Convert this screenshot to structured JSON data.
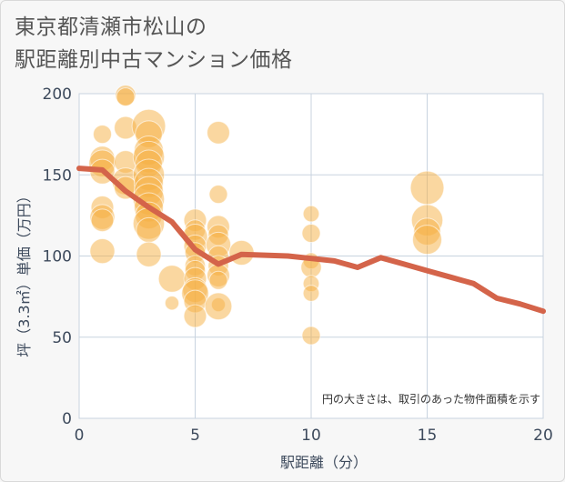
{
  "title": {
    "line1": "東京都清瀬市松山の",
    "line2": "駅距離別中古マンション価格"
  },
  "chart_data": {
    "type": "scatter",
    "title": "東京都清瀬市松山の駅距離別中古マンション価格",
    "xlabel": "駅距離（分）",
    "ylabel": "坪（3.3㎡）単価（万円）",
    "xlim": [
      0,
      20
    ],
    "ylim": [
      0,
      200
    ],
    "xticks": [
      0,
      5,
      10,
      15,
      20
    ],
    "yticks": [
      0,
      50,
      100,
      150,
      200
    ],
    "grid": true,
    "annotation": "円の大きさは、取引のあった物件面積を示す",
    "colors": {
      "bubble": "#f5b041",
      "line": "#d4644a"
    },
    "series": [
      {
        "type": "scatter",
        "points": [
          {
            "x": 1,
            "y": 175,
            "s": 0.5
          },
          {
            "x": 1,
            "y": 160,
            "s": 0.8
          },
          {
            "x": 1,
            "y": 157,
            "s": 0.9
          },
          {
            "x": 1,
            "y": 152,
            "s": 0.8
          },
          {
            "x": 1,
            "y": 130,
            "s": 0.7
          },
          {
            "x": 1,
            "y": 124,
            "s": 0.8
          },
          {
            "x": 1,
            "y": 122,
            "s": 0.7
          },
          {
            "x": 1,
            "y": 103,
            "s": 0.8
          },
          {
            "x": 2,
            "y": 199,
            "s": 0.6
          },
          {
            "x": 2,
            "y": 198,
            "s": 0.5
          },
          {
            "x": 2,
            "y": 179,
            "s": 0.7
          },
          {
            "x": 2,
            "y": 158,
            "s": 0.7
          },
          {
            "x": 2,
            "y": 146,
            "s": 0.9
          },
          {
            "x": 2,
            "y": 142,
            "s": 0.7
          },
          {
            "x": 3,
            "y": 180,
            "s": 1.2
          },
          {
            "x": 3,
            "y": 175,
            "s": 0.9
          },
          {
            "x": 3,
            "y": 165,
            "s": 1.0
          },
          {
            "x": 3,
            "y": 161,
            "s": 1.1
          },
          {
            "x": 3,
            "y": 157,
            "s": 0.9
          },
          {
            "x": 3,
            "y": 150,
            "s": 1.1
          },
          {
            "x": 3,
            "y": 145,
            "s": 1.0
          },
          {
            "x": 3,
            "y": 140,
            "s": 1.0
          },
          {
            "x": 3,
            "y": 135,
            "s": 1.1
          },
          {
            "x": 3,
            "y": 130,
            "s": 1.0
          },
          {
            "x": 3,
            "y": 125,
            "s": 0.9
          },
          {
            "x": 3,
            "y": 120,
            "s": 1.1
          },
          {
            "x": 3,
            "y": 116,
            "s": 0.8
          },
          {
            "x": 3,
            "y": 101,
            "s": 0.8
          },
          {
            "x": 4,
            "y": 86,
            "s": 0.9
          },
          {
            "x": 4,
            "y": 71,
            "s": 0.3
          },
          {
            "x": 5,
            "y": 122,
            "s": 0.7
          },
          {
            "x": 5,
            "y": 116,
            "s": 0.6
          },
          {
            "x": 5,
            "y": 112,
            "s": 0.8
          },
          {
            "x": 5,
            "y": 106,
            "s": 0.7
          },
          {
            "x": 5,
            "y": 102,
            "s": 0.6
          },
          {
            "x": 5,
            "y": 94,
            "s": 0.6
          },
          {
            "x": 5,
            "y": 91,
            "s": 0.6
          },
          {
            "x": 5,
            "y": 86,
            "s": 0.7
          },
          {
            "x": 5,
            "y": 79,
            "s": 0.8
          },
          {
            "x": 5,
            "y": 77,
            "s": 0.9
          },
          {
            "x": 5,
            "y": 72,
            "s": 0.7
          },
          {
            "x": 5,
            "y": 63,
            "s": 0.7
          },
          {
            "x": 6,
            "y": 176,
            "s": 0.7
          },
          {
            "x": 6,
            "y": 138,
            "s": 0.5
          },
          {
            "x": 6,
            "y": 118,
            "s": 0.7
          },
          {
            "x": 6,
            "y": 113,
            "s": 0.6
          },
          {
            "x": 6,
            "y": 107,
            "s": 0.8
          },
          {
            "x": 6,
            "y": 100,
            "s": 0.6
          },
          {
            "x": 6,
            "y": 94,
            "s": 0.6
          },
          {
            "x": 6,
            "y": 88,
            "s": 0.7
          },
          {
            "x": 6,
            "y": 85,
            "s": 0.5
          },
          {
            "x": 6,
            "y": 70,
            "s": 0.3
          },
          {
            "x": 6,
            "y": 69,
            "s": 0.9
          },
          {
            "x": 7,
            "y": 102,
            "s": 0.8
          },
          {
            "x": 10,
            "y": 126,
            "s": 0.4
          },
          {
            "x": 10,
            "y": 114,
            "s": 0.5
          },
          {
            "x": 10,
            "y": 97,
            "s": 0.4
          },
          {
            "x": 10,
            "y": 93,
            "s": 0.6
          },
          {
            "x": 10,
            "y": 83,
            "s": 0.4
          },
          {
            "x": 10,
            "y": 77,
            "s": 0.4
          },
          {
            "x": 10,
            "y": 51,
            "s": 0.5
          },
          {
            "x": 15,
            "y": 142,
            "s": 1.2
          },
          {
            "x": 15,
            "y": 122,
            "s": 1.1
          },
          {
            "x": 15,
            "y": 115,
            "s": 0.9
          },
          {
            "x": 15,
            "y": 110,
            "s": 1.0
          }
        ]
      },
      {
        "type": "line",
        "x": [
          0,
          1,
          2,
          3,
          4,
          5,
          6,
          7,
          8,
          9,
          10,
          11,
          12,
          13,
          14,
          15,
          16,
          17,
          18,
          19,
          20
        ],
        "values": [
          154,
          153,
          140,
          130,
          121,
          104,
          95,
          101,
          100.5,
          100,
          98.5,
          97,
          93,
          99,
          95,
          91,
          87,
          83,
          74,
          70.5,
          66
        ]
      }
    ]
  }
}
